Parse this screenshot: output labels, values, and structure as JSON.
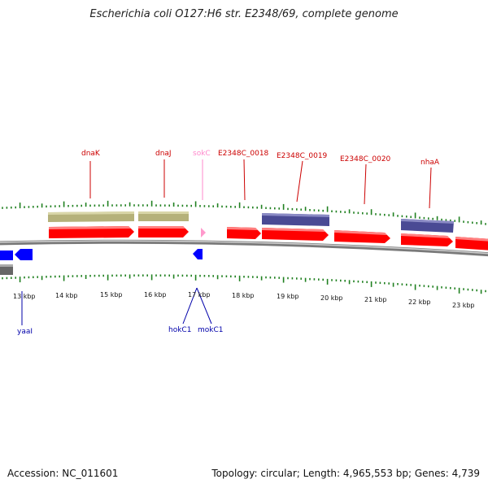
{
  "title": "Escherichia coli O127:H6 str. E2348/69, complete genome",
  "accession": "Accession: NC_011601",
  "topology": "Topology: circular; Length: 4,965,553 bp; Genes: 4,739",
  "colors": {
    "cds": "#ff0000",
    "gene_tan": "#b5b17a",
    "gene_purple": "#4a4a94",
    "reverse": "#0000ff",
    "label_red": "#cc0000",
    "label_pink": "#ff88cc",
    "label_blue": "#0000aa",
    "tick": "#208020",
    "backbone": "#888888"
  },
  "scale": {
    "kbp_labels": [
      "13 kbp",
      "14 kbp",
      "15 kbp",
      "16 kbp",
      "17 kbp",
      "18 kbp",
      "19 kbp",
      "20 kbp",
      "21 kbp",
      "22 kbp",
      "23 kbp"
    ]
  },
  "features": {
    "top_labels": [
      {
        "name": "dnaK",
        "color": "label_red"
      },
      {
        "name": "dnaJ",
        "color": "label_red"
      },
      {
        "name": "sokC",
        "color": "label_pink"
      },
      {
        "name": "E2348C_0018",
        "color": "label_red"
      },
      {
        "name": "E2348C_0019",
        "color": "label_red"
      },
      {
        "name": "E2348C_0020",
        "color": "label_red"
      },
      {
        "name": "nhaA",
        "color": "label_red"
      }
    ],
    "bottom_labels": [
      {
        "name": "yaaI"
      },
      {
        "name": "hokC1"
      },
      {
        "name": "mokC1"
      }
    ]
  }
}
